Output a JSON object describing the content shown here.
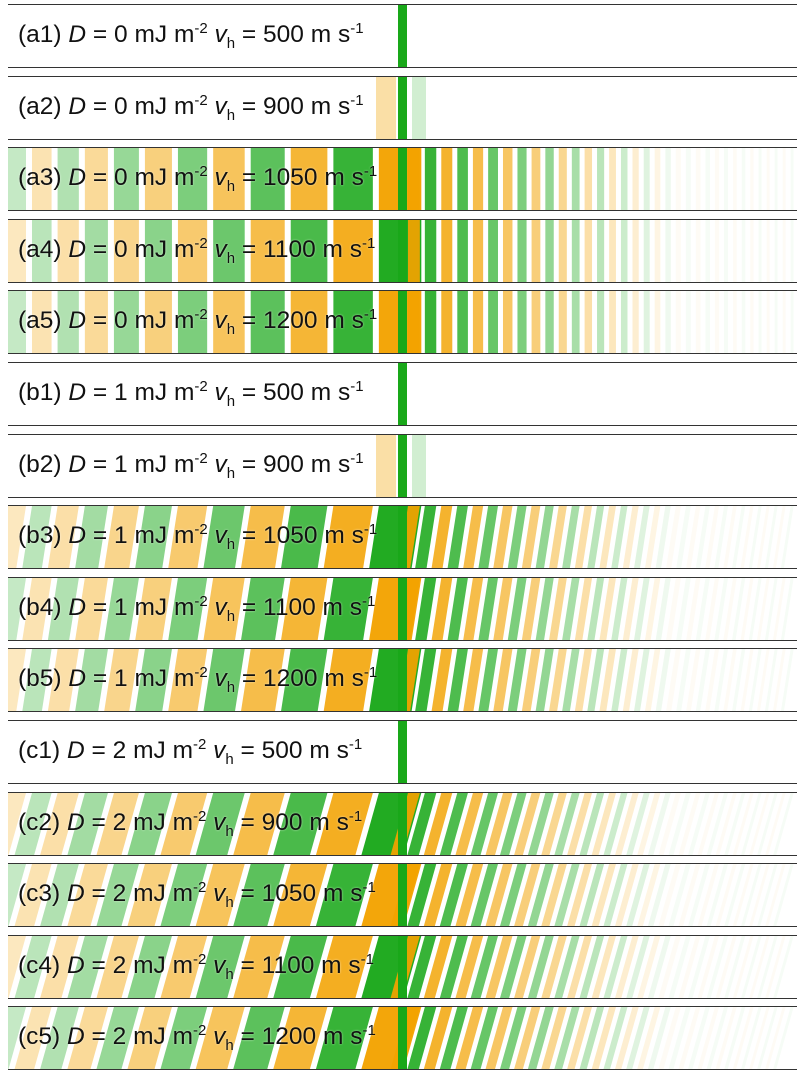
{
  "colors": {
    "positive": "#f2a200",
    "negative": "#19a819"
  },
  "panels": [
    {
      "id": "(a1)",
      "D": "0",
      "vh": "500",
      "pattern": "wall"
    },
    {
      "id": "(a2)",
      "D": "0",
      "vh": "900",
      "pattern": "wall-light"
    },
    {
      "id": "(a3)",
      "D": "0",
      "vh": "1050",
      "pattern": "vertical"
    },
    {
      "id": "(a4)",
      "D": "0",
      "vh": "1100",
      "pattern": "vertical"
    },
    {
      "id": "(a5)",
      "D": "0",
      "vh": "1200",
      "pattern": "vertical"
    },
    {
      "id": "(b1)",
      "D": "1",
      "vh": "500",
      "pattern": "wall"
    },
    {
      "id": "(b2)",
      "D": "1",
      "vh": "900",
      "pattern": "wall-tilt"
    },
    {
      "id": "(b3)",
      "D": "1",
      "vh": "1050",
      "pattern": "tilted"
    },
    {
      "id": "(b4)",
      "D": "1",
      "vh": "1100",
      "pattern": "tilted"
    },
    {
      "id": "(b5)",
      "D": "1",
      "vh": "1200",
      "pattern": "tilted"
    },
    {
      "id": "(c1)",
      "D": "2",
      "vh": "500",
      "pattern": "wall"
    },
    {
      "id": "(c2)",
      "D": "2",
      "vh": "900",
      "pattern": "tilted-strong"
    },
    {
      "id": "(c3)",
      "D": "2",
      "vh": "1050",
      "pattern": "tilted-strong"
    },
    {
      "id": "(c4)",
      "D": "2",
      "vh": "1100",
      "pattern": "tilted-strong"
    },
    {
      "id": "(c5)",
      "D": "2",
      "vh": "1200",
      "pattern": "tilted-strong"
    }
  ],
  "label_parts": {
    "D_symbol": "D",
    "equals": "=",
    "D_unit": "mJ m",
    "D_unit_exp": "-2",
    "v_symbol": "v",
    "v_sub": "h",
    "v_unit": "m s",
    "v_unit_exp": "-1"
  }
}
